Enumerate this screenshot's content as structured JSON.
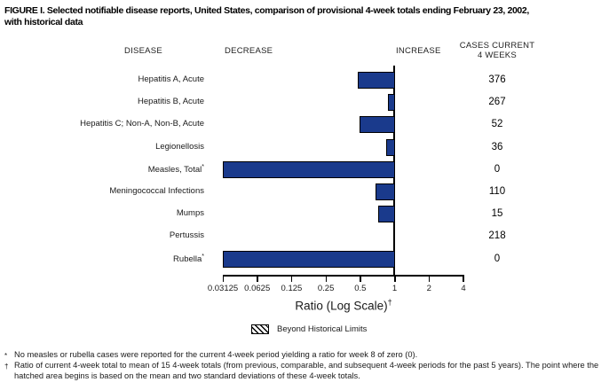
{
  "title": {
    "line1": "FIGURE I. Selected notifiable disease reports, United States, comparison of provisional 4-week totals ending February 23, 2002,",
    "line2": "with historical data"
  },
  "headers": {
    "disease": "DISEASE",
    "decrease": "DECREASE",
    "increase": "INCREASE",
    "cases_line1": "CASES CURRENT",
    "cases_line2": "4 WEEKS"
  },
  "chart_data": {
    "type": "bar",
    "orientation": "horizontal",
    "x_scale": "log2",
    "xlim": [
      0.03125,
      4
    ],
    "baseline": 1,
    "xlabel": "Ratio (Log Scale)",
    "xlabel_sup": "†",
    "x_tick_labels": [
      "0.03125",
      "0.0625",
      "0.125",
      "0.25",
      "0.5",
      "1",
      "2",
      "4"
    ],
    "bar_color": "#1a3a8c",
    "bar_border_color": "#000000",
    "legend": {
      "swatch": "hatched-box",
      "label": "Beyond Historical Limits"
    },
    "rows": [
      {
        "label": "Hepatitis A, Acute",
        "sup": "",
        "ratio": 0.47,
        "clipped": false,
        "cases": "376"
      },
      {
        "label": "Hepatitis B, Acute",
        "sup": "",
        "ratio": 0.87,
        "clipped": false,
        "cases": "267"
      },
      {
        "label": "Hepatitis C; Non-A, Non-B, Acute",
        "sup": "",
        "ratio": 0.49,
        "clipped": false,
        "cases": "52"
      },
      {
        "label": "Legionellosis",
        "sup": "",
        "ratio": 0.84,
        "clipped": false,
        "cases": "36"
      },
      {
        "label": "Measles, Total",
        "sup": "*",
        "ratio": 0,
        "clipped": true,
        "cases": "0"
      },
      {
        "label": "Meningococcal Infections",
        "sup": "",
        "ratio": 0.68,
        "clipped": false,
        "cases": "110"
      },
      {
        "label": "Mumps",
        "sup": "",
        "ratio": 0.71,
        "clipped": false,
        "cases": "15"
      },
      {
        "label": "Pertussis",
        "sup": "",
        "ratio": 1.0,
        "clipped": false,
        "cases": "218"
      },
      {
        "label": "Rubella",
        "sup": "*",
        "ratio": 0,
        "clipped": true,
        "cases": "0"
      }
    ]
  },
  "footnotes": [
    {
      "marker": "*",
      "text": "No measles or rubella cases were reported for the current 4-week period yielding a ratio for week 8 of zero (0)."
    },
    {
      "marker": "†",
      "text": "Ratio of current 4-week total to mean of 15 4-week totals (from previous, comparable, and subsequent 4-week periods for the past 5 years). The point where the hatched area begins is based on the mean and two standard deviations of these 4-week totals."
    }
  ]
}
